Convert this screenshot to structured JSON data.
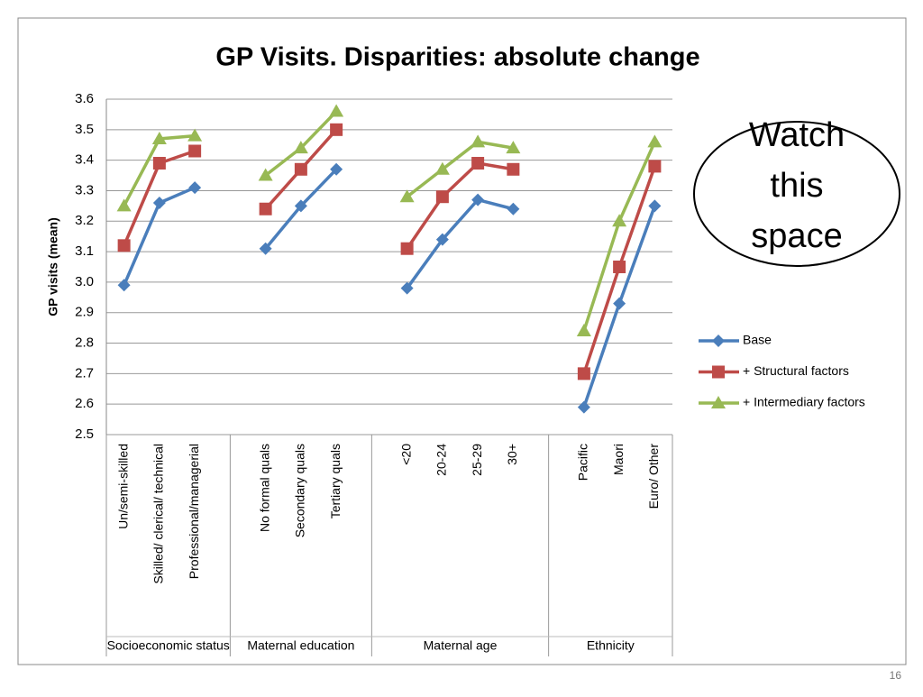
{
  "chart_data": {
    "type": "line",
    "title": "GP Visits. Disparities: absolute change",
    "y_label": "GP visits (mean)",
    "categories": [
      "Un/semi-skilled",
      "Skilled/ clerical/ technical",
      "Professional/managerial",
      null,
      "No formal quals",
      "Secondary quals",
      "Tertiary quals",
      null,
      "<20",
      "20-24",
      "25-29",
      "30+",
      null,
      "Pacific",
      "Maori",
      "Euro/ Other"
    ],
    "groups": [
      "Socioeconomic status",
      "Maternal education",
      "Maternal age",
      "Ethnicity"
    ],
    "series": [
      {
        "name": "Base",
        "color": "#4a7ebb",
        "marker": "diamond",
        "values": [
          2.99,
          3.26,
          3.31,
          null,
          3.11,
          3.25,
          3.37,
          null,
          2.98,
          3.14,
          3.27,
          3.24,
          null,
          2.59,
          2.93,
          3.25
        ]
      },
      {
        "name": "+ Structural factors",
        "color": "#be4b48",
        "marker": "square",
        "values": [
          3.12,
          3.39,
          3.43,
          null,
          3.24,
          3.37,
          3.5,
          null,
          3.11,
          3.28,
          3.39,
          3.37,
          null,
          2.7,
          3.05,
          3.38
        ]
      },
      {
        "name": "+ Intermediary factors",
        "color": "#98b954",
        "marker": "triangle",
        "values": [
          3.25,
          3.47,
          3.48,
          null,
          3.35,
          3.44,
          3.56,
          null,
          3.28,
          3.37,
          3.46,
          3.44,
          null,
          2.84,
          3.2,
          3.46
        ]
      }
    ],
    "ylim": [
      2.5,
      3.6
    ],
    "yticks": [
      2.5,
      2.6,
      2.7,
      2.8,
      2.9,
      {
        "value": 3.0,
        "label": "3.0"
      },
      3.1,
      3.2,
      3.3,
      3.4,
      3.5,
      3.6
    ],
    "grid": true,
    "legend": "right",
    "annotation": [
      "Watch",
      "this",
      "space"
    ],
    "page_number": "16"
  }
}
